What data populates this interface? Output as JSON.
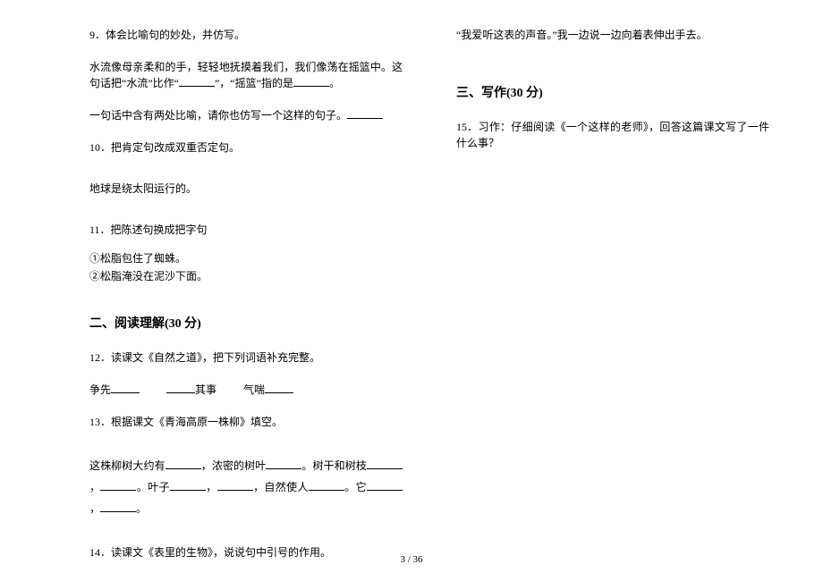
{
  "left": {
    "q9_num": "9．体会比喻句的妙处，并仿写。",
    "q9_p1a": "水流像母亲柔和的手，轻轻地抚摸着我们，我们像荡在摇篮中。这句话把“水流”比作“",
    "q9_p1b": "”，“摇篮”指的是",
    "q9_p1c": "。",
    "q9_p2a": "一句话中含有两处比喻，请你也仿写一个这样的句子。",
    "q10_num": "10．把肯定句改成双重否定句。",
    "q10_p1": "地球是绕太阳运行的。",
    "q11_num": "11．把陈述句换成把字句",
    "q11_p1": "①松脂包住了蜘蛛。",
    "q11_p2": "②松脂淹没在泥沙下面。",
    "s2_title": "二、阅读理解(30 分)",
    "q12_num": "12．读课文《自然之道》，把下列词语补充完整。",
    "q12_w1": "争先",
    "q12_w2": "其事",
    "q12_w3": "气喘",
    "q13_num": "13．根据课文《青海高原一株柳》填空。",
    "q13_p1a": "这株柳树大约有",
    "q13_p1b": "，浓密的树叶",
    "q13_p1c": "。树干和树枝",
    "q13_p1d": "，",
    "q13_p1e": "。叶子",
    "q13_p1f": "，",
    "q13_p1g": "，自然使人",
    "q13_p1h": "。它",
    "q13_p1i": "，",
    "q13_p1j": "。",
    "q14_num": "14．读课文《表里的生物》，说说句中引号的作用。"
  },
  "right": {
    "q14_p1": "“我爱听这表的声音。”我一边说一边向着表伸出手去。",
    "s3_title": "三、写作(30 分)",
    "q15_num": "15．习作：仔细阅读《一个这样的老师》，回答这篇课文写了一件什么事？"
  },
  "pagenum": "3 / 36"
}
